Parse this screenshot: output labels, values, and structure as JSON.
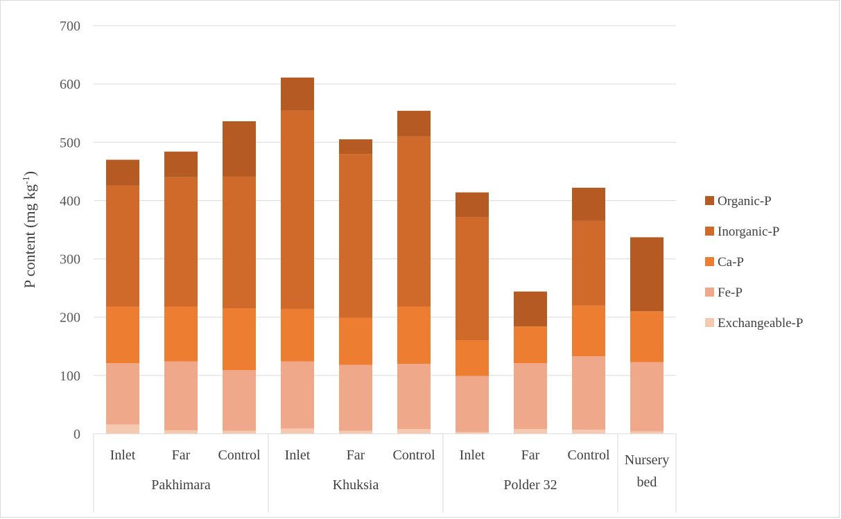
{
  "chart_data": {
    "type": "bar",
    "stacked": true,
    "ylabel_main": "P content (mg kg",
    "ylabel_sup": "-1",
    "ylabel_close": ")",
    "ylim": [
      0,
      700
    ],
    "yticks": [
      0,
      100,
      200,
      300,
      400,
      500,
      600,
      700
    ],
    "grid": true,
    "legend_position": "right",
    "groups": [
      {
        "name": "Pakhimara",
        "categories": [
          "Inlet",
          "Far",
          "Control"
        ]
      },
      {
        "name": "Khuksia",
        "categories": [
          "Inlet",
          "Far",
          "Control"
        ]
      },
      {
        "name": "Polder 32",
        "categories": [
          "Inlet",
          "Far",
          "Control"
        ]
      },
      {
        "name_lines": [
          "Nursery",
          "bed"
        ],
        "categories": [
          ""
        ]
      }
    ],
    "series": [
      {
        "name": "Exchangeable-P",
        "color": "#f5c9b0",
        "values": [
          16,
          6,
          5,
          9,
          5,
          8,
          3,
          8,
          7,
          4
        ]
      },
      {
        "name": "Fe-P",
        "color": "#f0a88a",
        "values": [
          105,
          118,
          104,
          115,
          113,
          112,
          96,
          113,
          126,
          119
        ]
      },
      {
        "name": "Ca-P",
        "color": "#ed7d31",
        "values": [
          97,
          94,
          106,
          90,
          81,
          98,
          61,
          63,
          87,
          87
        ]
      },
      {
        "name": "Inorganic-P",
        "color": "#d06a2a",
        "values": [
          208,
          222,
          226,
          340,
          281,
          292,
          212,
          0,
          145,
          0
        ]
      },
      {
        "name": "Organic-P",
        "color": "#b55a23",
        "values": [
          44,
          44,
          95,
          57,
          25,
          44,
          42,
          60,
          57,
          127
        ]
      }
    ]
  }
}
